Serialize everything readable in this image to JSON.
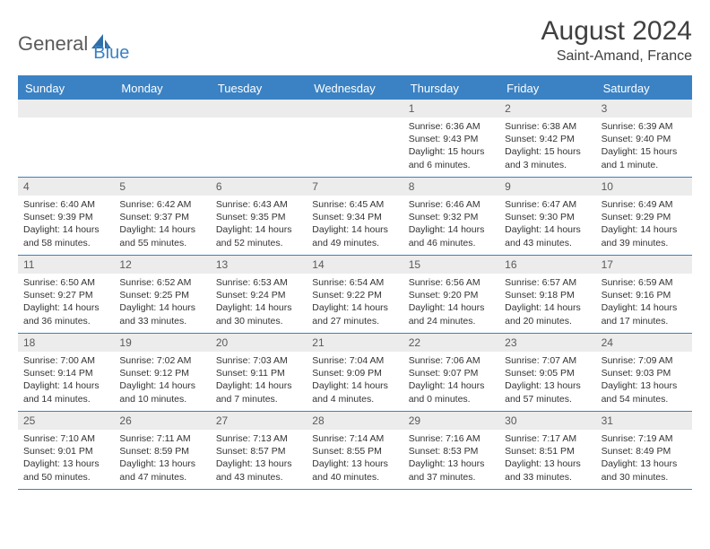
{
  "brand": {
    "part1": "General",
    "part2": "Blue"
  },
  "title": "August 2024",
  "location": "Saint-Amand, France",
  "weekdays": [
    "Sunday",
    "Monday",
    "Tuesday",
    "Wednesday",
    "Thursday",
    "Friday",
    "Saturday"
  ],
  "colors": {
    "accent": "#3b82c4",
    "header_text": "#404040",
    "cell_num_bg": "#ececec",
    "body_text": "#333333"
  },
  "weeks": [
    [
      {
        "day": "",
        "sunrise": "",
        "sunset": "",
        "daylight": ""
      },
      {
        "day": "",
        "sunrise": "",
        "sunset": "",
        "daylight": ""
      },
      {
        "day": "",
        "sunrise": "",
        "sunset": "",
        "daylight": ""
      },
      {
        "day": "",
        "sunrise": "",
        "sunset": "",
        "daylight": ""
      },
      {
        "day": "1",
        "sunrise": "Sunrise: 6:36 AM",
        "sunset": "Sunset: 9:43 PM",
        "daylight": "Daylight: 15 hours and 6 minutes."
      },
      {
        "day": "2",
        "sunrise": "Sunrise: 6:38 AM",
        "sunset": "Sunset: 9:42 PM",
        "daylight": "Daylight: 15 hours and 3 minutes."
      },
      {
        "day": "3",
        "sunrise": "Sunrise: 6:39 AM",
        "sunset": "Sunset: 9:40 PM",
        "daylight": "Daylight: 15 hours and 1 minute."
      }
    ],
    [
      {
        "day": "4",
        "sunrise": "Sunrise: 6:40 AM",
        "sunset": "Sunset: 9:39 PM",
        "daylight": "Daylight: 14 hours and 58 minutes."
      },
      {
        "day": "5",
        "sunrise": "Sunrise: 6:42 AM",
        "sunset": "Sunset: 9:37 PM",
        "daylight": "Daylight: 14 hours and 55 minutes."
      },
      {
        "day": "6",
        "sunrise": "Sunrise: 6:43 AM",
        "sunset": "Sunset: 9:35 PM",
        "daylight": "Daylight: 14 hours and 52 minutes."
      },
      {
        "day": "7",
        "sunrise": "Sunrise: 6:45 AM",
        "sunset": "Sunset: 9:34 PM",
        "daylight": "Daylight: 14 hours and 49 minutes."
      },
      {
        "day": "8",
        "sunrise": "Sunrise: 6:46 AM",
        "sunset": "Sunset: 9:32 PM",
        "daylight": "Daylight: 14 hours and 46 minutes."
      },
      {
        "day": "9",
        "sunrise": "Sunrise: 6:47 AM",
        "sunset": "Sunset: 9:30 PM",
        "daylight": "Daylight: 14 hours and 43 minutes."
      },
      {
        "day": "10",
        "sunrise": "Sunrise: 6:49 AM",
        "sunset": "Sunset: 9:29 PM",
        "daylight": "Daylight: 14 hours and 39 minutes."
      }
    ],
    [
      {
        "day": "11",
        "sunrise": "Sunrise: 6:50 AM",
        "sunset": "Sunset: 9:27 PM",
        "daylight": "Daylight: 14 hours and 36 minutes."
      },
      {
        "day": "12",
        "sunrise": "Sunrise: 6:52 AM",
        "sunset": "Sunset: 9:25 PM",
        "daylight": "Daylight: 14 hours and 33 minutes."
      },
      {
        "day": "13",
        "sunrise": "Sunrise: 6:53 AM",
        "sunset": "Sunset: 9:24 PM",
        "daylight": "Daylight: 14 hours and 30 minutes."
      },
      {
        "day": "14",
        "sunrise": "Sunrise: 6:54 AM",
        "sunset": "Sunset: 9:22 PM",
        "daylight": "Daylight: 14 hours and 27 minutes."
      },
      {
        "day": "15",
        "sunrise": "Sunrise: 6:56 AM",
        "sunset": "Sunset: 9:20 PM",
        "daylight": "Daylight: 14 hours and 24 minutes."
      },
      {
        "day": "16",
        "sunrise": "Sunrise: 6:57 AM",
        "sunset": "Sunset: 9:18 PM",
        "daylight": "Daylight: 14 hours and 20 minutes."
      },
      {
        "day": "17",
        "sunrise": "Sunrise: 6:59 AM",
        "sunset": "Sunset: 9:16 PM",
        "daylight": "Daylight: 14 hours and 17 minutes."
      }
    ],
    [
      {
        "day": "18",
        "sunrise": "Sunrise: 7:00 AM",
        "sunset": "Sunset: 9:14 PM",
        "daylight": "Daylight: 14 hours and 14 minutes."
      },
      {
        "day": "19",
        "sunrise": "Sunrise: 7:02 AM",
        "sunset": "Sunset: 9:12 PM",
        "daylight": "Daylight: 14 hours and 10 minutes."
      },
      {
        "day": "20",
        "sunrise": "Sunrise: 7:03 AM",
        "sunset": "Sunset: 9:11 PM",
        "daylight": "Daylight: 14 hours and 7 minutes."
      },
      {
        "day": "21",
        "sunrise": "Sunrise: 7:04 AM",
        "sunset": "Sunset: 9:09 PM",
        "daylight": "Daylight: 14 hours and 4 minutes."
      },
      {
        "day": "22",
        "sunrise": "Sunrise: 7:06 AM",
        "sunset": "Sunset: 9:07 PM",
        "daylight": "Daylight: 14 hours and 0 minutes."
      },
      {
        "day": "23",
        "sunrise": "Sunrise: 7:07 AM",
        "sunset": "Sunset: 9:05 PM",
        "daylight": "Daylight: 13 hours and 57 minutes."
      },
      {
        "day": "24",
        "sunrise": "Sunrise: 7:09 AM",
        "sunset": "Sunset: 9:03 PM",
        "daylight": "Daylight: 13 hours and 54 minutes."
      }
    ],
    [
      {
        "day": "25",
        "sunrise": "Sunrise: 7:10 AM",
        "sunset": "Sunset: 9:01 PM",
        "daylight": "Daylight: 13 hours and 50 minutes."
      },
      {
        "day": "26",
        "sunrise": "Sunrise: 7:11 AM",
        "sunset": "Sunset: 8:59 PM",
        "daylight": "Daylight: 13 hours and 47 minutes."
      },
      {
        "day": "27",
        "sunrise": "Sunrise: 7:13 AM",
        "sunset": "Sunset: 8:57 PM",
        "daylight": "Daylight: 13 hours and 43 minutes."
      },
      {
        "day": "28",
        "sunrise": "Sunrise: 7:14 AM",
        "sunset": "Sunset: 8:55 PM",
        "daylight": "Daylight: 13 hours and 40 minutes."
      },
      {
        "day": "29",
        "sunrise": "Sunrise: 7:16 AM",
        "sunset": "Sunset: 8:53 PM",
        "daylight": "Daylight: 13 hours and 37 minutes."
      },
      {
        "day": "30",
        "sunrise": "Sunrise: 7:17 AM",
        "sunset": "Sunset: 8:51 PM",
        "daylight": "Daylight: 13 hours and 33 minutes."
      },
      {
        "day": "31",
        "sunrise": "Sunrise: 7:19 AM",
        "sunset": "Sunset: 8:49 PM",
        "daylight": "Daylight: 13 hours and 30 minutes."
      }
    ]
  ]
}
